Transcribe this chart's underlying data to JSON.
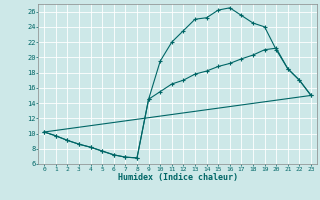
{
  "xlabel": "Humidex (Indice chaleur)",
  "bg_color": "#cde8e8",
  "grid_color": "#ffffff",
  "line_color": "#006666",
  "xlim": [
    -0.5,
    23.5
  ],
  "ylim": [
    6,
    27
  ],
  "xticks": [
    0,
    1,
    2,
    3,
    4,
    5,
    6,
    7,
    8,
    9,
    10,
    11,
    12,
    13,
    14,
    15,
    16,
    17,
    18,
    19,
    20,
    21,
    22,
    23
  ],
  "yticks": [
    6,
    8,
    10,
    12,
    14,
    16,
    18,
    20,
    22,
    24,
    26
  ],
  "series": [
    {
      "x": [
        0,
        1,
        2,
        3,
        4,
        5,
        6,
        7,
        8,
        9,
        10,
        11,
        12,
        13,
        14,
        15,
        16,
        17,
        18,
        19,
        20,
        21,
        22,
        23
      ],
      "y": [
        10.2,
        9.7,
        9.1,
        8.6,
        8.2,
        7.7,
        7.2,
        6.9,
        6.8,
        14.5,
        19.5,
        22.0,
        23.5,
        25.0,
        25.2,
        26.2,
        26.5,
        25.5,
        24.5,
        24.0,
        21.0,
        18.5,
        17.0,
        15.0
      ],
      "marker": true
    },
    {
      "x": [
        0,
        1,
        2,
        3,
        4,
        5,
        6,
        7,
        8,
        9,
        10,
        11,
        12,
        13,
        14,
        15,
        16,
        17,
        18,
        19,
        20,
        21,
        22,
        23
      ],
      "y": [
        10.2,
        9.7,
        9.1,
        8.6,
        8.2,
        7.7,
        7.2,
        6.9,
        6.8,
        14.5,
        15.5,
        16.5,
        17.0,
        17.8,
        18.2,
        18.8,
        19.2,
        19.8,
        20.3,
        21.0,
        21.2,
        18.5,
        17.0,
        15.0
      ],
      "marker": true
    },
    {
      "x": [
        0,
        23
      ],
      "y": [
        10.2,
        15.0
      ],
      "marker": false
    }
  ]
}
